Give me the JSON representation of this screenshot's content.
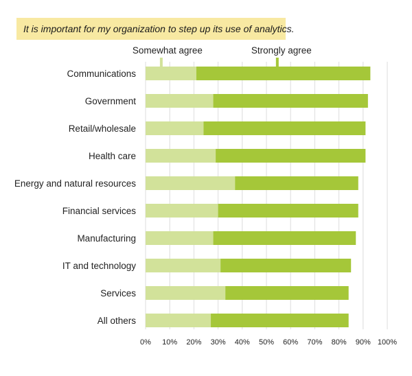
{
  "chart_data": {
    "type": "bar",
    "orientation": "horizontal",
    "stacked": true,
    "title": "It is important for my organization to step up its use of analytics.",
    "categories": [
      "Communications",
      "Government",
      "Retail/wholesale",
      "Health care",
      "Energy and natural resources",
      "Financial services",
      "Manufacturing",
      "IT and technology",
      "Services",
      "All others"
    ],
    "series": [
      {
        "name": "Somewhat agree",
        "color": "#d2e29a",
        "values": [
          21,
          28,
          24,
          29,
          37,
          30,
          28,
          31,
          33,
          27
        ]
      },
      {
        "name": "Strongly agree",
        "color": "#a5c739",
        "values": [
          72,
          64,
          67,
          62,
          51,
          58,
          59,
          54,
          51,
          57
        ]
      }
    ],
    "xlim": [
      0,
      100
    ],
    "xticks": [
      "0%",
      "10%",
      "20%",
      "30%",
      "40%",
      "50%",
      "60%",
      "70%",
      "80%",
      "90%",
      "100%"
    ],
    "grid": "vertical",
    "legend": "top"
  }
}
